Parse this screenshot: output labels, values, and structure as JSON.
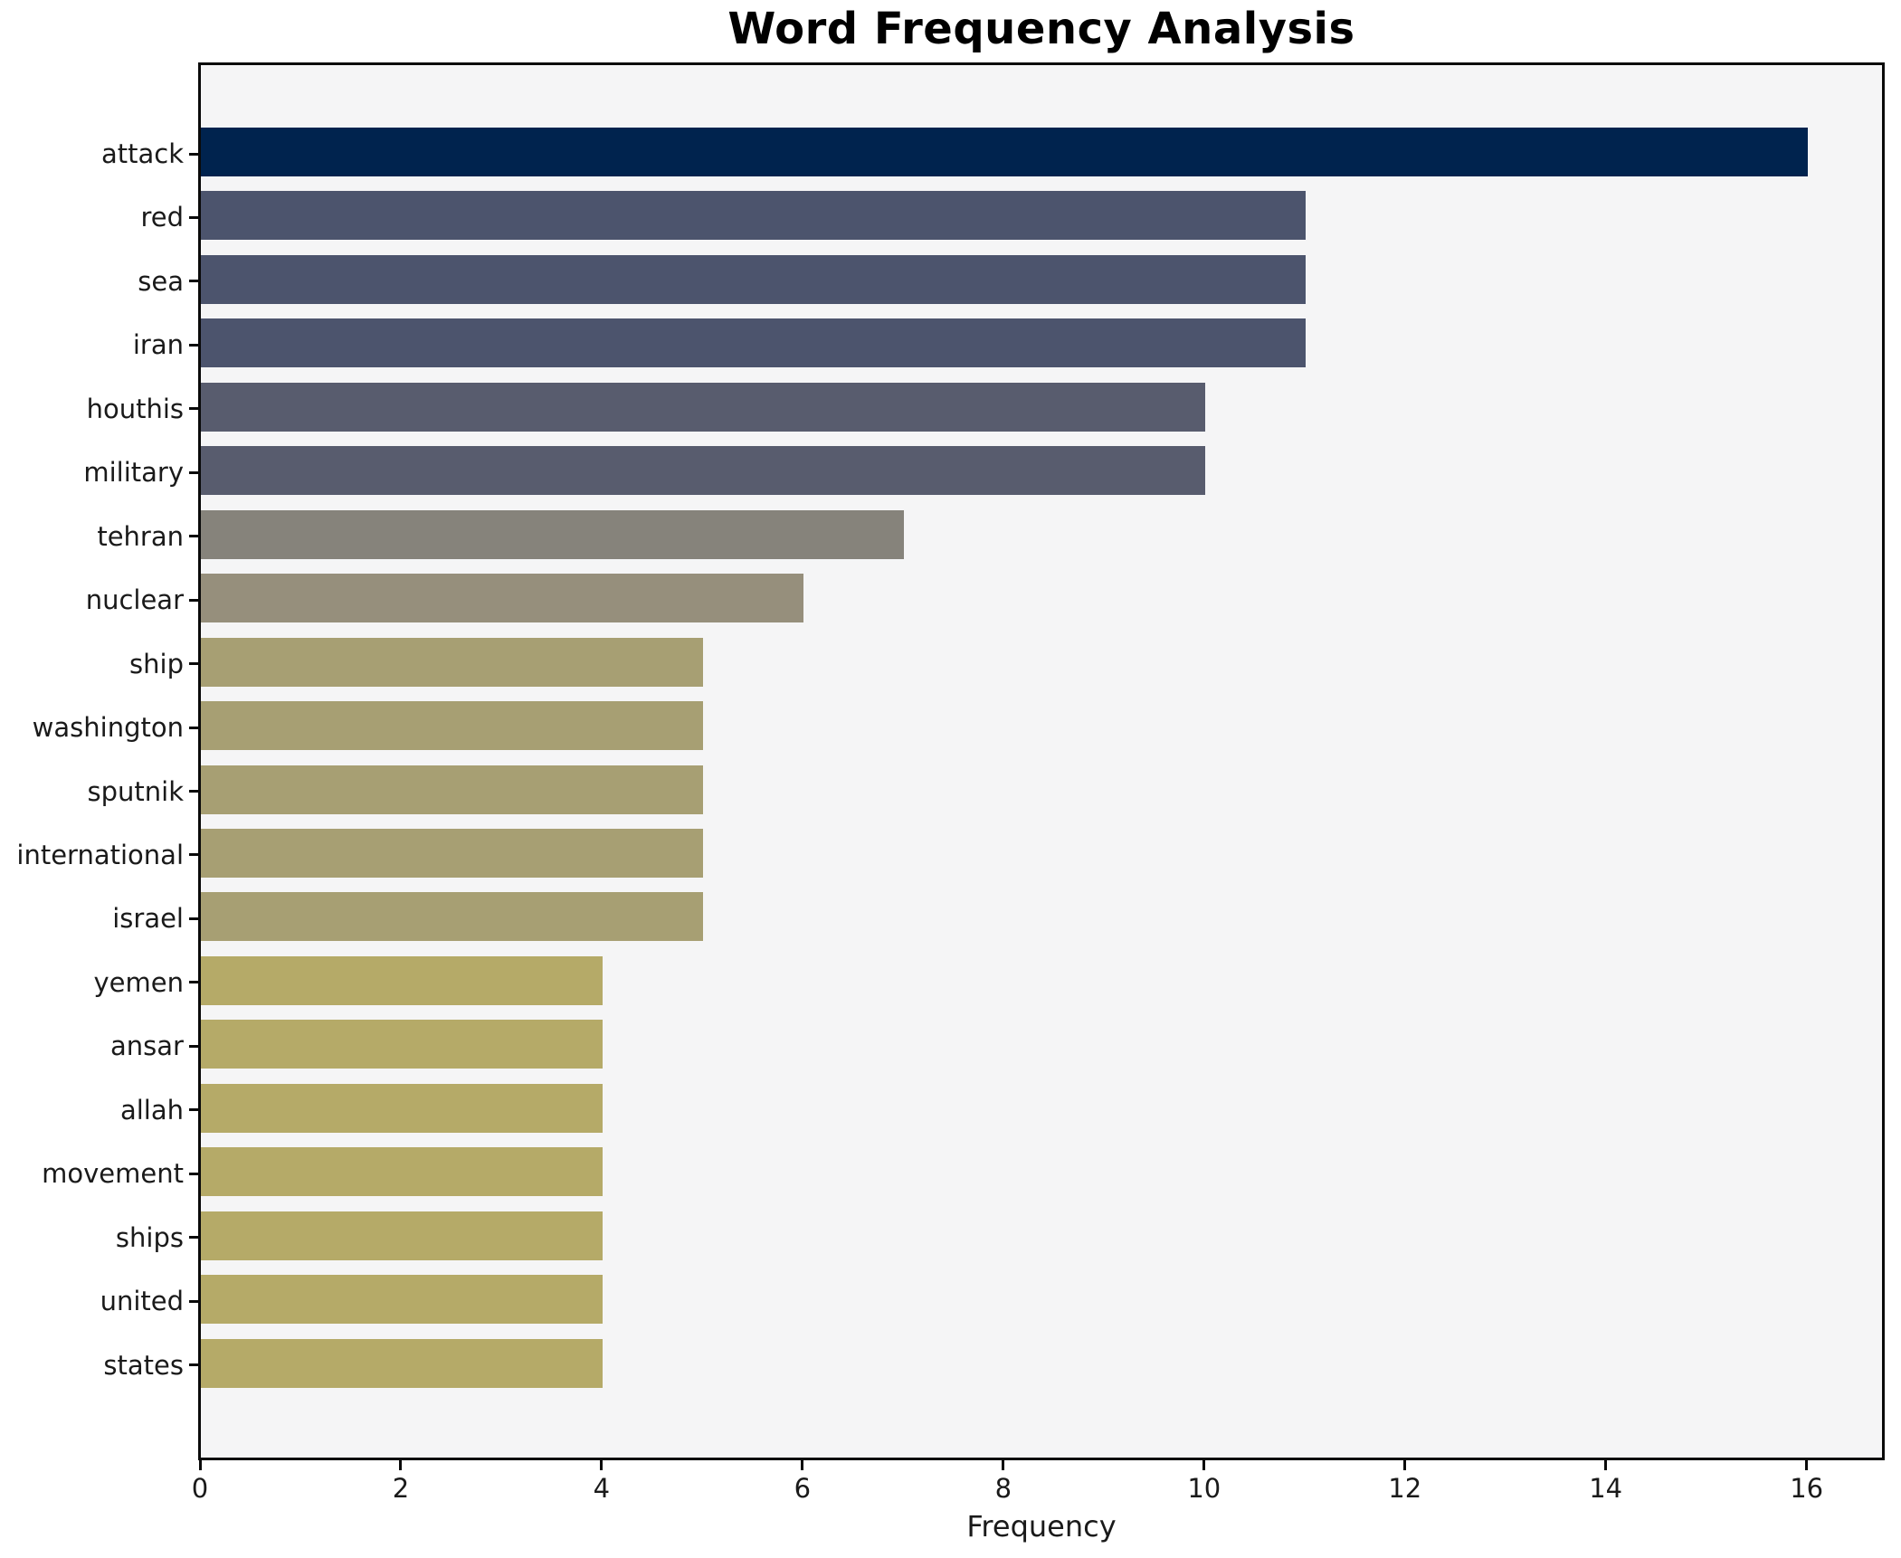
{
  "chart_data": {
    "type": "bar",
    "orientation": "horizontal",
    "title": "Word Frequency Analysis",
    "xlabel": "Frequency",
    "ylabel": "",
    "categories": [
      "attack",
      "red",
      "sea",
      "iran",
      "houthis",
      "military",
      "tehran",
      "nuclear",
      "ship",
      "washington",
      "sputnik",
      "international",
      "israel",
      "yemen",
      "ansar",
      "allah",
      "movement",
      "ships",
      "united",
      "states"
    ],
    "values": [
      16,
      11,
      11,
      11,
      10,
      10,
      7,
      6,
      5,
      5,
      5,
      5,
      5,
      4,
      4,
      4,
      4,
      4,
      4,
      4
    ],
    "bar_colors": [
      "#00234e",
      "#4c546d",
      "#4c546d",
      "#4c546d",
      "#585c6e",
      "#585c6e",
      "#86837b",
      "#968f7c",
      "#a79f73",
      "#a79f73",
      "#a79f73",
      "#a79f73",
      "#a79f73",
      "#b5aa68",
      "#b5aa68",
      "#b5aa68",
      "#b5aa68",
      "#b5aa68",
      "#b5aa68",
      "#b5aa68"
    ],
    "x_ticks": [
      0,
      2,
      4,
      6,
      8,
      10,
      12,
      14,
      16
    ],
    "xlim": [
      0,
      16.76
    ],
    "grid": false,
    "legend": null,
    "plot_background": "#f5f5f6",
    "figure_background": "#ffffff",
    "spine_color": "#0a0a0a"
  }
}
